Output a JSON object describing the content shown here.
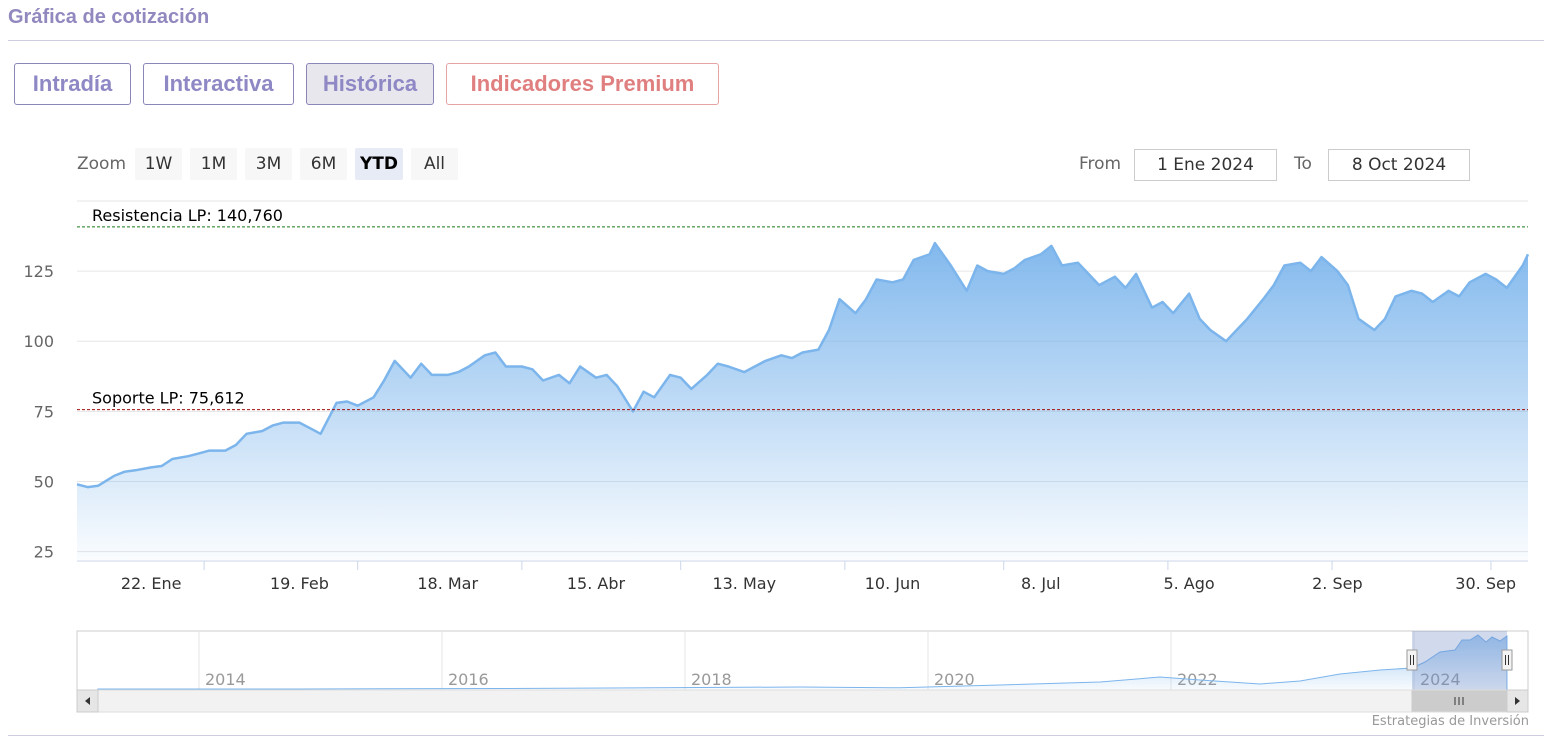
{
  "page": {
    "title": "Gráfica de cotización",
    "credit": "Estrategias de Inversión"
  },
  "tabs": [
    {
      "label": "Intradía",
      "active": false
    },
    {
      "label": "Interactiva",
      "active": false
    },
    {
      "label": "Histórica",
      "active": true
    },
    {
      "label": "Indicadores Premium",
      "active": false
    }
  ],
  "range_selector": {
    "zoom_label": "Zoom",
    "buttons": [
      "1W",
      "1M",
      "3M",
      "6M",
      "YTD",
      "All"
    ],
    "selected": "YTD",
    "from_label": "From",
    "from_value": "1 Ene 2024",
    "to_label": "To",
    "to_value": "8 Oct 2024"
  },
  "colors": {
    "line": "#7cb5ec",
    "fill_top": "#7cb5ec",
    "resistance": "#1a7a1a",
    "support": "#a01010",
    "title": "#9288bf",
    "premium": "#e07f7f"
  },
  "chart_data": {
    "type": "area",
    "y_ticks": [
      25,
      50,
      75,
      100,
      125
    ],
    "ylim": [
      22,
      150
    ],
    "x_ticks": [
      "22. Ene",
      "19. Feb",
      "18. Mar",
      "15. Abr",
      "13. May",
      "10. Jun",
      "8. Jul",
      "5. Ago",
      "2. Sep",
      "30. Sep"
    ],
    "x_start": "2024-01-08",
    "x_end": "2024-10-08",
    "series": [
      {
        "values": [
          [
            "2024-01-08",
            49
          ],
          [
            "2024-01-10",
            48
          ],
          [
            "2024-01-12",
            48.5
          ],
          [
            "2024-01-15",
            52
          ],
          [
            "2024-01-17",
            53.5
          ],
          [
            "2024-01-19",
            54
          ],
          [
            "2024-01-22",
            55
          ],
          [
            "2024-01-24",
            55.5
          ],
          [
            "2024-01-26",
            58
          ],
          [
            "2024-01-29",
            59
          ],
          [
            "2024-01-31",
            60
          ],
          [
            "2024-02-02",
            61
          ],
          [
            "2024-02-05",
            61
          ],
          [
            "2024-02-07",
            63
          ],
          [
            "2024-02-09",
            67
          ],
          [
            "2024-02-12",
            68
          ],
          [
            "2024-02-14",
            70
          ],
          [
            "2024-02-16",
            71
          ],
          [
            "2024-02-19",
            71
          ],
          [
            "2024-02-21",
            69
          ],
          [
            "2024-02-23",
            67
          ],
          [
            "2024-02-26",
            78
          ],
          [
            "2024-02-28",
            78.5
          ],
          [
            "2024-03-01",
            77
          ],
          [
            "2024-03-04",
            80
          ],
          [
            "2024-03-06",
            86
          ],
          [
            "2024-03-08",
            93
          ],
          [
            "2024-03-11",
            87
          ],
          [
            "2024-03-13",
            92
          ],
          [
            "2024-03-15",
            88
          ],
          [
            "2024-03-18",
            88
          ],
          [
            "2024-03-20",
            89
          ],
          [
            "2024-03-22",
            91
          ],
          [
            "2024-03-25",
            95
          ],
          [
            "2024-03-27",
            96
          ],
          [
            "2024-03-29",
            91
          ],
          [
            "2024-04-01",
            91
          ],
          [
            "2024-04-03",
            90
          ],
          [
            "2024-04-05",
            86
          ],
          [
            "2024-04-08",
            88
          ],
          [
            "2024-04-10",
            85
          ],
          [
            "2024-04-12",
            91
          ],
          [
            "2024-04-15",
            87
          ],
          [
            "2024-04-17",
            88
          ],
          [
            "2024-04-19",
            84
          ],
          [
            "2024-04-22",
            75
          ],
          [
            "2024-04-24",
            82
          ],
          [
            "2024-04-26",
            80
          ],
          [
            "2024-04-29",
            88
          ],
          [
            "2024-05-01",
            87
          ],
          [
            "2024-05-03",
            83
          ],
          [
            "2024-05-06",
            88
          ],
          [
            "2024-05-08",
            92
          ],
          [
            "2024-05-10",
            91
          ],
          [
            "2024-05-13",
            89
          ],
          [
            "2024-05-15",
            91
          ],
          [
            "2024-05-17",
            93
          ],
          [
            "2024-05-20",
            95
          ],
          [
            "2024-05-22",
            94
          ],
          [
            "2024-05-24",
            96
          ],
          [
            "2024-05-27",
            97
          ],
          [
            "2024-05-29",
            104
          ],
          [
            "2024-05-31",
            115
          ],
          [
            "2024-06-03",
            110
          ],
          [
            "2024-06-05",
            115
          ],
          [
            "2024-06-07",
            122
          ],
          [
            "2024-06-10",
            121
          ],
          [
            "2024-06-12",
            122
          ],
          [
            "2024-06-14",
            129
          ],
          [
            "2024-06-17",
            131
          ],
          [
            "2024-06-18",
            135
          ],
          [
            "2024-06-21",
            127
          ],
          [
            "2024-06-24",
            118
          ],
          [
            "2024-06-26",
            127
          ],
          [
            "2024-06-28",
            125
          ],
          [
            "2024-07-01",
            124
          ],
          [
            "2024-07-03",
            126
          ],
          [
            "2024-07-05",
            129
          ],
          [
            "2024-07-08",
            131
          ],
          [
            "2024-07-10",
            134
          ],
          [
            "2024-07-12",
            127
          ],
          [
            "2024-07-15",
            128
          ],
          [
            "2024-07-17",
            124
          ],
          [
            "2024-07-19",
            120
          ],
          [
            "2024-07-22",
            123
          ],
          [
            "2024-07-24",
            119
          ],
          [
            "2024-07-26",
            124
          ],
          [
            "2024-07-29",
            112
          ],
          [
            "2024-07-31",
            114
          ],
          [
            "2024-08-02",
            110
          ],
          [
            "2024-08-05",
            117
          ],
          [
            "2024-08-07",
            108
          ],
          [
            "2024-08-09",
            104
          ],
          [
            "2024-08-12",
            100
          ],
          [
            "2024-08-14",
            104
          ],
          [
            "2024-08-16",
            108
          ],
          [
            "2024-08-19",
            115
          ],
          [
            "2024-08-21",
            120
          ],
          [
            "2024-08-23",
            127
          ],
          [
            "2024-08-26",
            128
          ],
          [
            "2024-08-28",
            125
          ],
          [
            "2024-08-30",
            130
          ],
          [
            "2024-09-02",
            125
          ],
          [
            "2024-09-04",
            120
          ],
          [
            "2024-09-06",
            108
          ],
          [
            "2024-09-09",
            104
          ],
          [
            "2024-09-11",
            108
          ],
          [
            "2024-09-13",
            116
          ],
          [
            "2024-09-16",
            118
          ],
          [
            "2024-09-18",
            117
          ],
          [
            "2024-09-20",
            114
          ],
          [
            "2024-09-23",
            118
          ],
          [
            "2024-09-25",
            116
          ],
          [
            "2024-09-27",
            121
          ],
          [
            "2024-09-30",
            124
          ],
          [
            "2024-10-02",
            122
          ],
          [
            "2024-10-04",
            119
          ],
          [
            "2024-10-07",
            127
          ],
          [
            "2024-10-08",
            131
          ]
        ]
      }
    ],
    "lines": [
      {
        "label": "Resistencia LP: 140,760",
        "value": 140.76,
        "color": "#1a7a1a"
      },
      {
        "label": "Soporte LP: 75,612",
        "value": 75.612,
        "color": "#a01010"
      }
    ]
  },
  "navigator": {
    "years": [
      "2014",
      "2016",
      "2018",
      "2020",
      "2022",
      "2024"
    ]
  }
}
